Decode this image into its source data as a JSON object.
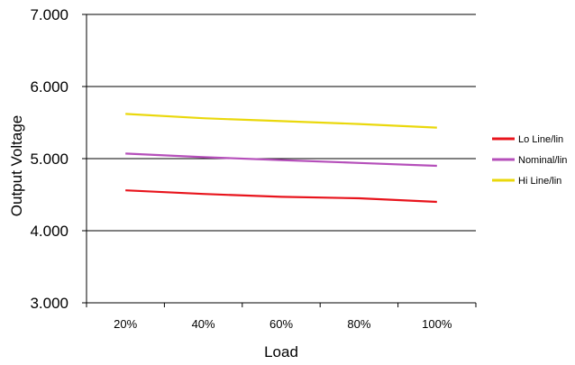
{
  "chart_data": {
    "type": "line",
    "title": "",
    "xlabel": "Load",
    "ylabel": "Output Voltage",
    "categories": [
      "20%",
      "40%",
      "60%",
      "80%",
      "100%"
    ],
    "ylim": [
      3,
      7
    ],
    "yticks": [
      "3.000",
      "4.000",
      "5.000",
      "6.000",
      "7.000"
    ],
    "ytick_values": [
      3,
      4,
      5,
      6,
      7
    ],
    "grid": "horizontal",
    "legend_position": "right",
    "series": [
      {
        "name": "Lo Line/lin",
        "color": "#e8141c",
        "values": [
          4.56,
          4.51,
          4.47,
          4.45,
          4.4
        ]
      },
      {
        "name": "Nominal/lin",
        "color": "#b54fba",
        "values": [
          5.07,
          5.02,
          4.98,
          4.94,
          4.9
        ]
      },
      {
        "name": "Hi Line/lin",
        "color": "#ead80c",
        "values": [
          5.62,
          5.56,
          5.52,
          5.48,
          5.43
        ]
      }
    ]
  }
}
